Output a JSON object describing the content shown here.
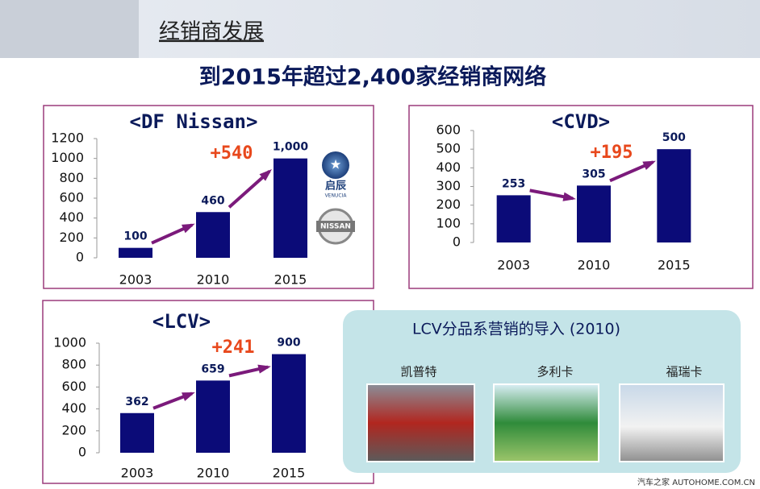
{
  "header": {
    "section": "经销商发展",
    "headline": "到2015年超过2,400家经销商网络"
  },
  "chart_data": [
    {
      "type": "bar",
      "title": "<DF Nissan>",
      "categories": [
        "2003",
        "2010",
        "2015"
      ],
      "values": [
        100,
        460,
        1000
      ],
      "value_labels": [
        "100",
        "460",
        "1,000"
      ],
      "annotation": "+540",
      "color": "#0b0b78",
      "ylim": [
        0,
        1200
      ],
      "yticks": [
        0,
        200,
        400,
        600,
        800,
        1000,
        1200
      ]
    },
    {
      "type": "bar",
      "title": "<CVD>",
      "categories": [
        "2003",
        "2010",
        "2015"
      ],
      "values": [
        253,
        305,
        500
      ],
      "annotation": "+195",
      "color": "#0b0b78",
      "ylim": [
        0,
        600
      ],
      "yticks": [
        0,
        100,
        200,
        300,
        400,
        500,
        600
      ]
    },
    {
      "type": "bar",
      "title": "<LCV>",
      "categories": [
        "2003",
        "2010",
        "2015"
      ],
      "values": [
        362,
        659,
        900
      ],
      "annotation": "+241",
      "color": "#0b0b78",
      "ylim": [
        0,
        1000
      ],
      "yticks": [
        0,
        200,
        400,
        600,
        800,
        1000
      ]
    }
  ],
  "logos": {
    "venucia_cn": "启辰",
    "venucia_en": "VENUCIA",
    "nissan": "NISSAN"
  },
  "lcv_panel": {
    "title": "LCV分品系营销的导入 (2010)",
    "products": [
      "凯普特",
      "多利卡",
      "福瑞卡"
    ]
  },
  "watermark": "汽车之家 AUTOHOME.COM.CN"
}
